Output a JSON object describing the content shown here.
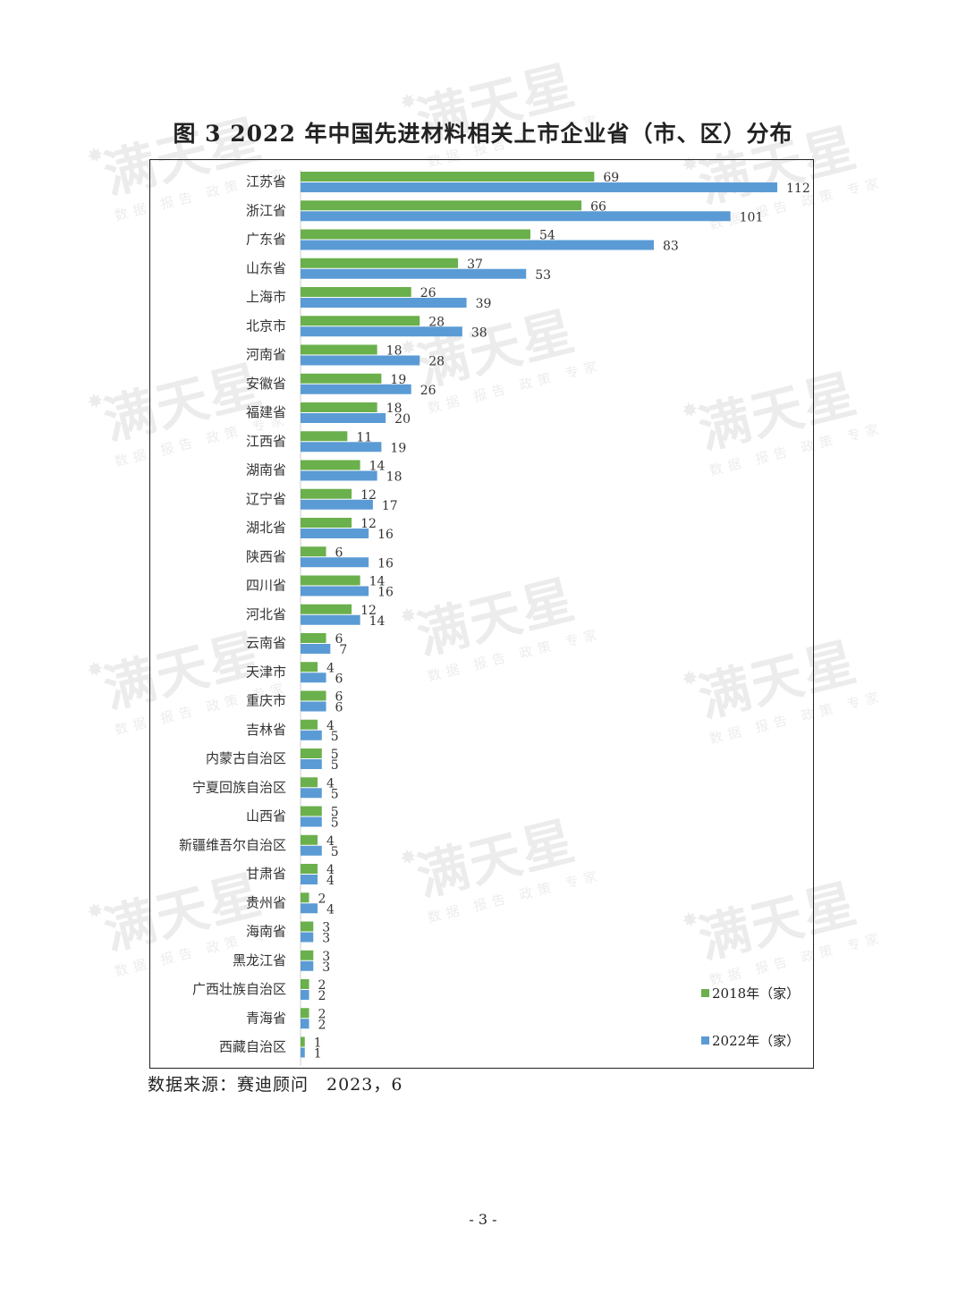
{
  "document": {
    "title": "图 3 2022 年中国先进材料相关上市企业省（市、区）分布",
    "source_note": "数据来源：赛迪顾问　2023，6",
    "page_number": "- 3 -"
  },
  "watermark": {
    "main_text": "满天星",
    "sub_text": "数据 报告 政策 专家",
    "icon": "star-burst-icon"
  },
  "colors": {
    "series_2018": "#6ab04c",
    "series_2022": "#5b9bd5",
    "frame": "#222222",
    "text": "#333333"
  },
  "chart_data": {
    "type": "bar",
    "orientation": "horizontal",
    "title": "图 3 2022 年中国先进材料相关上市企业省（市、区）分布",
    "categories": [
      "江苏省",
      "浙江省",
      "广东省",
      "山东省",
      "上海市",
      "北京市",
      "河南省",
      "安徽省",
      "福建省",
      "江西省",
      "湖南省",
      "辽宁省",
      "湖北省",
      "陕西省",
      "四川省",
      "河北省",
      "云南省",
      "天津市",
      "重庆市",
      "吉林省",
      "内蒙古自治区",
      "宁夏回族自治区",
      "山西省",
      "新疆维吾尔自治区",
      "甘肃省",
      "贵州省",
      "海南省",
      "黑龙江省",
      "广西壮族自治区",
      "青海省",
      "西藏自治区"
    ],
    "series": [
      {
        "name": "2018年（家）",
        "color": "#6ab04c",
        "values": [
          69,
          66,
          54,
          37,
          26,
          28,
          18,
          19,
          18,
          11,
          14,
          12,
          12,
          6,
          14,
          12,
          6,
          4,
          6,
          4,
          5,
          4,
          5,
          4,
          4,
          2,
          3,
          3,
          2,
          2,
          1
        ]
      },
      {
        "name": "2022年（家）",
        "color": "#5b9bd5",
        "values": [
          112,
          101,
          83,
          53,
          39,
          38,
          28,
          26,
          20,
          19,
          18,
          17,
          16,
          16,
          16,
          14,
          7,
          6,
          6,
          5,
          5,
          5,
          5,
          5,
          4,
          4,
          3,
          3,
          2,
          2,
          1
        ]
      }
    ],
    "xlim": [
      0,
      112
    ],
    "grid": false,
    "data_labels": true,
    "legend_position": "bottom-right"
  }
}
